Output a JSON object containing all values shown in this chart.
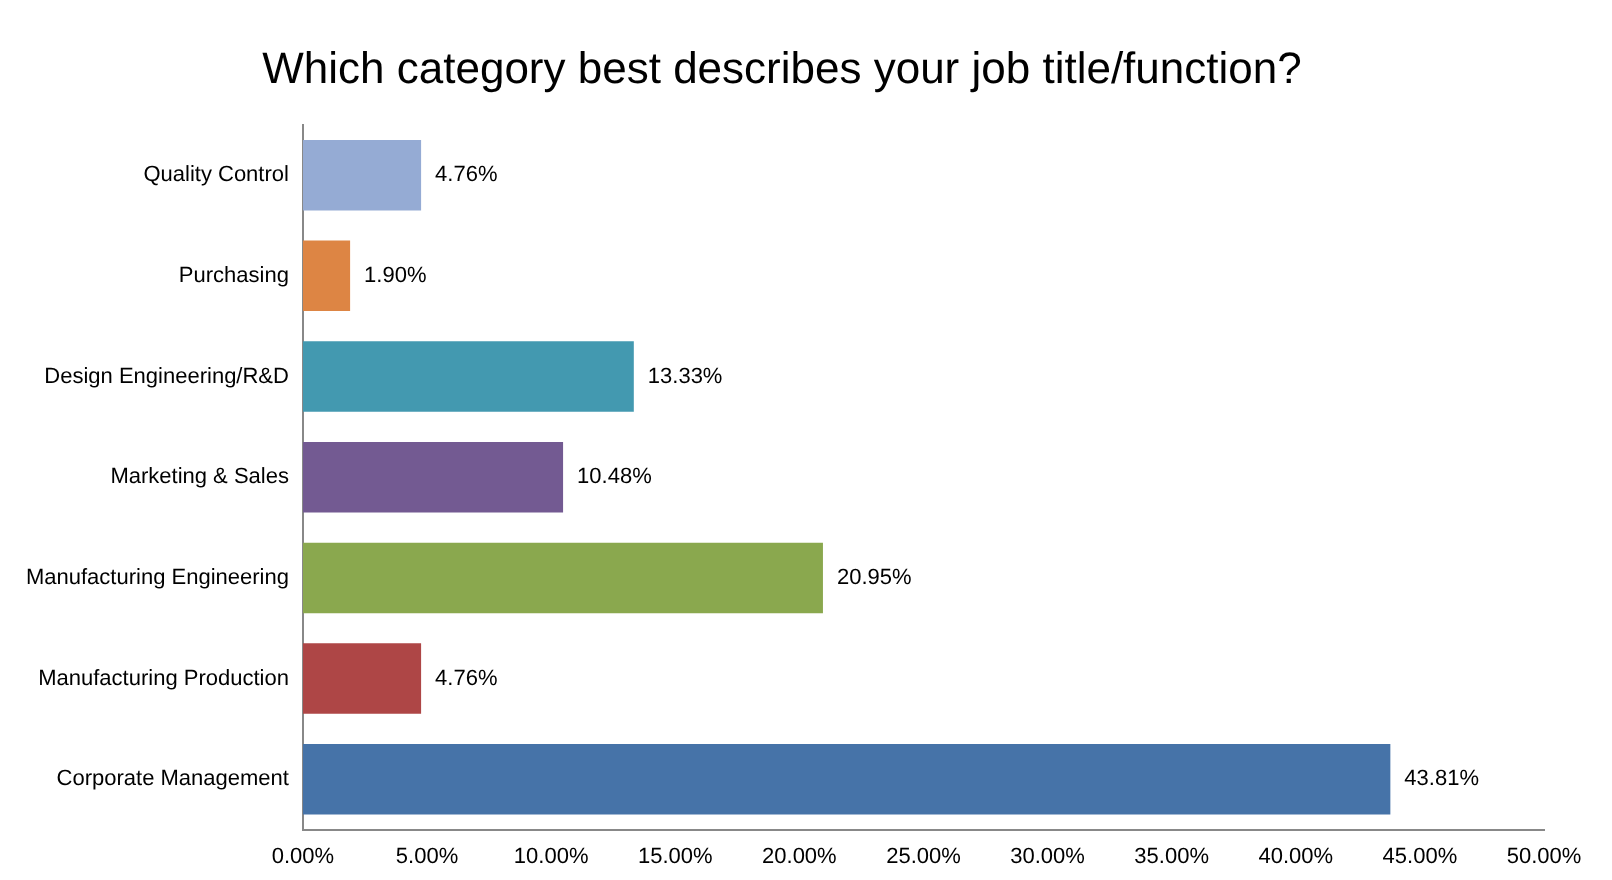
{
  "chart_data": {
    "type": "bar",
    "orientation": "horizontal",
    "title": "Which category best describes your job title/function?",
    "categories": [
      "Quality Control",
      "Purchasing",
      "Design Engineering/R&D",
      "Marketing & Sales",
      "Manufacturing Engineering",
      "Manufacturing Production",
      "Corporate Management"
    ],
    "values": [
      4.76,
      1.9,
      13.33,
      10.48,
      20.95,
      4.76,
      43.81
    ],
    "colors": [
      "#95abd4",
      "#dd8544",
      "#4399b0",
      "#735a92",
      "#8aa84e",
      "#ae4646",
      "#4673a8"
    ],
    "value_labels": [
      "4.76%",
      "1.90%",
      "13.33%",
      "10.48%",
      "20.95%",
      "4.76%",
      "43.81%"
    ],
    "xlim": [
      0,
      50
    ],
    "xticks": [
      {
        "value": 0,
        "label": "0.00%"
      },
      {
        "value": 5,
        "label": "5.00%"
      },
      {
        "value": 10,
        "label": "10.00%"
      },
      {
        "value": 15,
        "label": "15.00%"
      },
      {
        "value": 20,
        "label": "20.00%"
      },
      {
        "value": 25,
        "label": "25.00%"
      },
      {
        "value": 30,
        "label": "30.00%"
      },
      {
        "value": 35,
        "label": "35.00%"
      },
      {
        "value": 40,
        "label": "40.00%"
      },
      {
        "value": 45,
        "label": "45.00%"
      },
      {
        "value": 50,
        "label": "50.00%"
      }
    ],
    "grid": false,
    "legend": false
  }
}
